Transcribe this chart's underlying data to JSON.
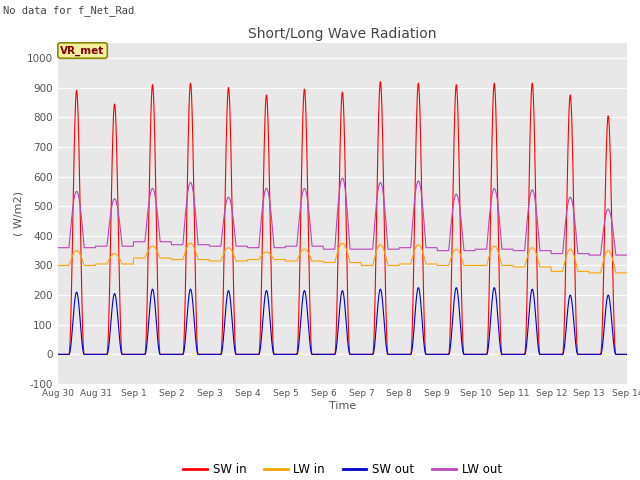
{
  "title": "Short/Long Wave Radiation",
  "xlabel": "Time",
  "ylabel": "( W/m2)",
  "note": "No data for f_Net_Rad",
  "station_label": "VR_met",
  "ylim": [
    -100,
    1050
  ],
  "yticks": [
    -100,
    0,
    100,
    200,
    300,
    400,
    500,
    600,
    700,
    800,
    900,
    1000
  ],
  "num_days": 15,
  "background_color": "#e8e8e8",
  "sw_in_color": "#ff0000",
  "lw_in_color": "#ffa500",
  "sw_out_color": "#0000cc",
  "lw_out_color": "#bb44bb",
  "xtick_labels": [
    "Aug 30",
    "Aug 31",
    "Sep 1",
    "Sep 2",
    "Sep 3",
    "Sep 4",
    "Sep 5",
    "Sep 6",
    "Sep 7",
    "Sep 8",
    "Sep 9",
    "Sep 10",
    "Sep 11",
    "Sep 12",
    "Sep 13",
    "Sep 14"
  ],
  "sw_in_peaks": [
    890,
    845,
    910,
    915,
    900,
    875,
    895,
    885,
    920,
    915,
    910,
    915,
    915,
    875,
    805,
    0
  ],
  "sw_out_peaks": [
    210,
    205,
    220,
    220,
    215,
    215,
    215,
    215,
    220,
    225,
    225,
    225,
    220,
    200,
    200,
    0
  ],
  "lw_in_day": [
    350,
    340,
    365,
    375,
    360,
    345,
    355,
    375,
    370,
    370,
    355,
    365,
    360,
    355,
    350,
    350
  ],
  "lw_in_night": [
    300,
    305,
    325,
    320,
    315,
    320,
    315,
    310,
    300,
    305,
    300,
    300,
    295,
    280,
    275,
    275
  ],
  "lw_out_peaks": [
    550,
    525,
    560,
    580,
    530,
    560,
    560,
    595,
    580,
    585,
    540,
    560,
    555,
    530,
    490,
    400
  ],
  "lw_out_night": [
    360,
    365,
    380,
    370,
    365,
    360,
    365,
    355,
    355,
    360,
    350,
    355,
    350,
    340,
    335,
    335
  ]
}
